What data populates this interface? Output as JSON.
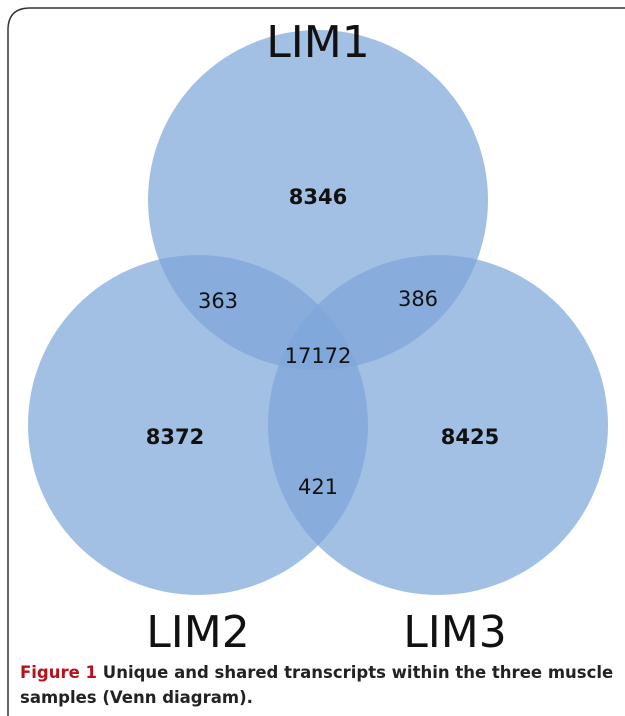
{
  "sets": [
    {
      "label": "LIM1"
    },
    {
      "label": "LIM2"
    },
    {
      "label": "LIM3"
    }
  ],
  "regions": [
    {
      "sets": "LIM1",
      "value": 8346
    },
    {
      "sets": "LIM1 LIM2",
      "value": 363
    },
    {
      "sets": "LIM1 LIM3",
      "value": 386
    },
    {
      "sets": "LIM1 LIM2 LIM3",
      "value": 17172
    },
    {
      "sets": "LIM2",
      "value": 8372
    },
    {
      "sets": "LIM3",
      "value": 8425
    },
    {
      "sets": "LIM2 LIM3",
      "value": 421
    }
  ],
  "caption": {
    "label": "Figure 1",
    "text": "Unique and shared transcripts within the three muscle samples (Venn diagram)."
  }
}
